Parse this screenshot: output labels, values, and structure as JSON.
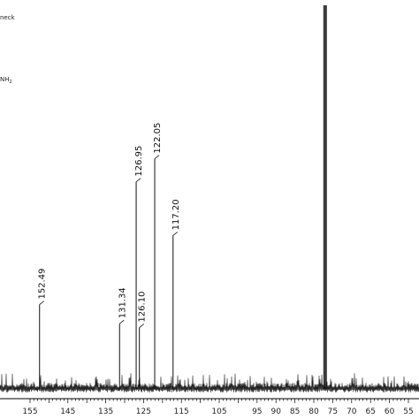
{
  "header": {
    "line1": "neck",
    "line2_main": "NH",
    "line2_sub": "2"
  },
  "chart_data": {
    "type": "line",
    "title": "",
    "xlabel": "",
    "ylabel": "",
    "x_reversed": true,
    "xlim": [
      157,
      53
    ],
    "ylim": [
      0,
      100
    ],
    "xticks": [
      155,
      145,
      135,
      125,
      115,
      105,
      95,
      90,
      85,
      80,
      75,
      70,
      65,
      60,
      55
    ],
    "xtick_labels": [
      "155",
      "145",
      "135",
      "125",
      "115",
      "105",
      "95",
      "90",
      "85",
      "80",
      "75",
      "70",
      "65",
      "60",
      "55"
    ],
    "peaks": [
      {
        "x": 152.49,
        "label": "152.49",
        "y": 22
      },
      {
        "x": 131.34,
        "label": "131.34",
        "y": 17
      },
      {
        "x": 126.95,
        "label": "126.95",
        "y": 54
      },
      {
        "x": 126.1,
        "label": "126.10",
        "y": 16
      },
      {
        "x": 122.05,
        "label": "122.05",
        "y": 60
      },
      {
        "x": 117.2,
        "label": "117.20",
        "y": 40
      },
      {
        "x": 77.0,
        "label": "",
        "y": 100
      }
    ],
    "grid": false
  }
}
